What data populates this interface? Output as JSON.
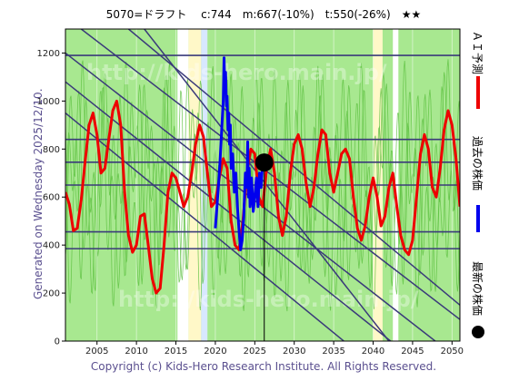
{
  "chart_data": {
    "type": "line",
    "title": "5070=ドラフト　 c:744　m:667(-10%)　t:550(-26%)　★★",
    "side_note": "Generated on Wednesday 2025/12/10.",
    "footer": "Copyright (c) Kids-Hero Research Institute. All Rights Reserved.",
    "watermark": "http://kids-hero.main.jp/",
    "xlim": [
      2001,
      2051
    ],
    "ylim": [
      0,
      1300
    ],
    "x_ticks": [
      "2005",
      "2010",
      "2015",
      "2020",
      "2025",
      "2030",
      "2035",
      "2040",
      "2045",
      "2050"
    ],
    "y_ticks": [
      "0",
      "200",
      "400",
      "600",
      "800",
      "1000",
      "1200"
    ],
    "horizontal_levels": [
      1190,
      840,
      745,
      650,
      455,
      385
    ],
    "trend_lines": [
      {
        "from": [
          2003,
          1300
        ],
        "to": [
          2051,
          90
        ]
      },
      {
        "from": [
          2001,
          1200
        ],
        "to": [
          2051,
          -80
        ]
      },
      {
        "from": [
          2001,
          1080
        ],
        "to": [
          2051,
          -230
        ]
      },
      {
        "from": [
          2009,
          1300
        ],
        "to": [
          2051,
          150
        ]
      },
      {
        "from": [
          2011,
          1300
        ],
        "to": [
          2042,
          0
        ]
      },
      {
        "from": [
          2001,
          950
        ],
        "to": [
          2040,
          -100
        ]
      }
    ],
    "current_price": {
      "year": 2026.2,
      "value": 744
    },
    "current_marker_line_year": 2026.2,
    "ai_forecast": {
      "name": "ＡＩ予測",
      "color": "#ee0000",
      "x": [
        2001.0,
        2001.5,
        2002.0,
        2002.5,
        2003.0,
        2003.5,
        2004.0,
        2004.5,
        2005.0,
        2005.5,
        2006.0,
        2006.5,
        2007.0,
        2007.5,
        2008.0,
        2008.5,
        2009.0,
        2009.5,
        2010.0,
        2010.5,
        2011.0,
        2011.5,
        2012.0,
        2012.5,
        2013.0,
        2013.5,
        2014.0,
        2014.5,
        2015.0,
        2015.5,
        2016.0,
        2016.5,
        2017.0,
        2017.5,
        2018.0,
        2018.5,
        2019.0,
        2019.5,
        2020.0,
        2020.5,
        2021.0,
        2021.5,
        2022.0,
        2022.5,
        2023.0,
        2023.5,
        2024.0,
        2024.5,
        2025.0,
        2025.5,
        2026.0,
        2026.5,
        2027.0,
        2027.5,
        2028.0,
        2028.5,
        2029.0,
        2029.5,
        2030.0,
        2030.5,
        2031.0,
        2031.5,
        2032.0,
        2032.5,
        2033.0,
        2033.5,
        2034.0,
        2034.5,
        2035.0,
        2035.5,
        2036.0,
        2036.5,
        2037.0,
        2037.5,
        2038.0,
        2038.5,
        2039.0,
        2039.5,
        2040.0,
        2040.5,
        2041.0,
        2041.5,
        2042.0,
        2042.5,
        2043.0,
        2043.5,
        2044.0,
        2044.5,
        2045.0,
        2045.5,
        2046.0,
        2046.5,
        2047.0,
        2047.5,
        2048.0,
        2048.5,
        2049.0,
        2049.5,
        2050.0,
        2050.5,
        2051.0
      ],
      "values": [
        620,
        570,
        460,
        470,
        590,
        750,
        900,
        950,
        860,
        700,
        720,
        840,
        960,
        1000,
        900,
        620,
        440,
        370,
        400,
        520,
        530,
        400,
        260,
        200,
        220,
        400,
        620,
        700,
        680,
        620,
        560,
        600,
        700,
        820,
        900,
        850,
        700,
        560,
        580,
        680,
        760,
        720,
        500,
        400,
        380,
        500,
        700,
        800,
        780,
        600,
        560,
        720,
        800,
        700,
        520,
        440,
        520,
        700,
        820,
        860,
        800,
        660,
        560,
        640,
        780,
        880,
        860,
        700,
        620,
        700,
        780,
        800,
        760,
        600,
        470,
        420,
        480,
        600,
        680,
        600,
        480,
        520,
        640,
        700,
        560,
        440,
        380,
        360,
        420,
        600,
        780,
        860,
        800,
        640,
        600,
        720,
        880,
        960,
        900,
        760,
        560
      ]
    },
    "past_price": {
      "name": "過去の株価",
      "color": "#0000ee",
      "x": [
        2020.0,
        2020.2,
        2020.4,
        2020.6,
        2020.8,
        2021.0,
        2021.1,
        2021.2,
        2021.3,
        2021.4,
        2021.5,
        2021.6,
        2021.7,
        2021.8,
        2021.9,
        2022.0,
        2022.2,
        2022.4,
        2022.6,
        2022.8,
        2023.0,
        2023.2,
        2023.4,
        2023.6,
        2023.8,
        2024.0,
        2024.1,
        2024.2,
        2024.3,
        2024.4,
        2024.6,
        2024.8,
        2025.0,
        2025.2,
        2025.4,
        2025.6,
        2025.8,
        2026.0
      ],
      "values": [
        470,
        560,
        650,
        750,
        880,
        1000,
        1180,
        1060,
        1120,
        980,
        1020,
        880,
        950,
        820,
        900,
        720,
        780,
        620,
        700,
        560,
        460,
        380,
        420,
        520,
        700,
        640,
        830,
        600,
        720,
        560,
        680,
        540,
        600,
        680,
        560,
        700,
        640,
        744
      ]
    },
    "latest_price": {
      "name": "最新の株価",
      "color": "#000000"
    },
    "green_band_color": "#a8e890",
    "green_band_dark": "#5cc040"
  }
}
